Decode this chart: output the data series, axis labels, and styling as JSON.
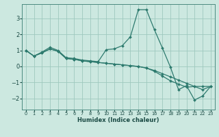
{
  "xlabel": "Humidex (Indice chaleur)",
  "background_color": "#cce8e0",
  "grid_color": "#9ec8be",
  "line_color": "#2d7a6e",
  "xlim": [
    -0.5,
    23.5
  ],
  "ylim": [
    -2.7,
    3.9
  ],
  "xticks": [
    0,
    1,
    2,
    3,
    4,
    5,
    6,
    7,
    8,
    9,
    10,
    11,
    12,
    13,
    14,
    15,
    16,
    17,
    18,
    19,
    20,
    21,
    22,
    23
  ],
  "yticks": [
    -2,
    -1,
    0,
    1,
    2,
    3
  ],
  "lines": [
    {
      "x": [
        0,
        1,
        2,
        3,
        4,
        5,
        6,
        7,
        8,
        9,
        10,
        11,
        12,
        13,
        14,
        15,
        16,
        17,
        18,
        19,
        20,
        21,
        22,
        23
      ],
      "y": [
        1.0,
        0.65,
        0.9,
        1.2,
        1.0,
        0.55,
        0.5,
        0.4,
        0.35,
        0.3,
        1.05,
        1.1,
        1.3,
        1.85,
        3.55,
        3.55,
        2.3,
        1.15,
        -0.05,
        -1.45,
        -1.2,
        -2.1,
        -1.85,
        -1.25
      ]
    },
    {
      "x": [
        0,
        1,
        2,
        3,
        4,
        5,
        6,
        7,
        8,
        9,
        10,
        11,
        12,
        13,
        14,
        15,
        16,
        17,
        18,
        19,
        20,
        21,
        22,
        23
      ],
      "y": [
        1.0,
        0.65,
        0.85,
        1.1,
        0.95,
        0.5,
        0.45,
        0.35,
        0.3,
        0.25,
        0.2,
        0.15,
        0.1,
        0.05,
        0.0,
        -0.1,
        -0.25,
        -0.45,
        -0.65,
        -0.85,
        -1.05,
        -1.25,
        -1.45,
        -1.25
      ]
    },
    {
      "x": [
        0,
        1,
        2,
        3,
        4,
        5,
        6,
        7,
        8,
        9,
        10,
        11,
        12,
        13,
        14,
        15,
        16,
        17,
        18,
        19,
        20,
        21,
        22,
        23
      ],
      "y": [
        1.0,
        0.65,
        0.85,
        1.1,
        0.95,
        0.5,
        0.45,
        0.35,
        0.3,
        0.25,
        0.2,
        0.15,
        0.1,
        0.05,
        0.0,
        -0.1,
        -0.3,
        -0.6,
        -0.9,
        -1.1,
        -1.3,
        -1.25,
        -1.25,
        -1.25
      ]
    }
  ]
}
